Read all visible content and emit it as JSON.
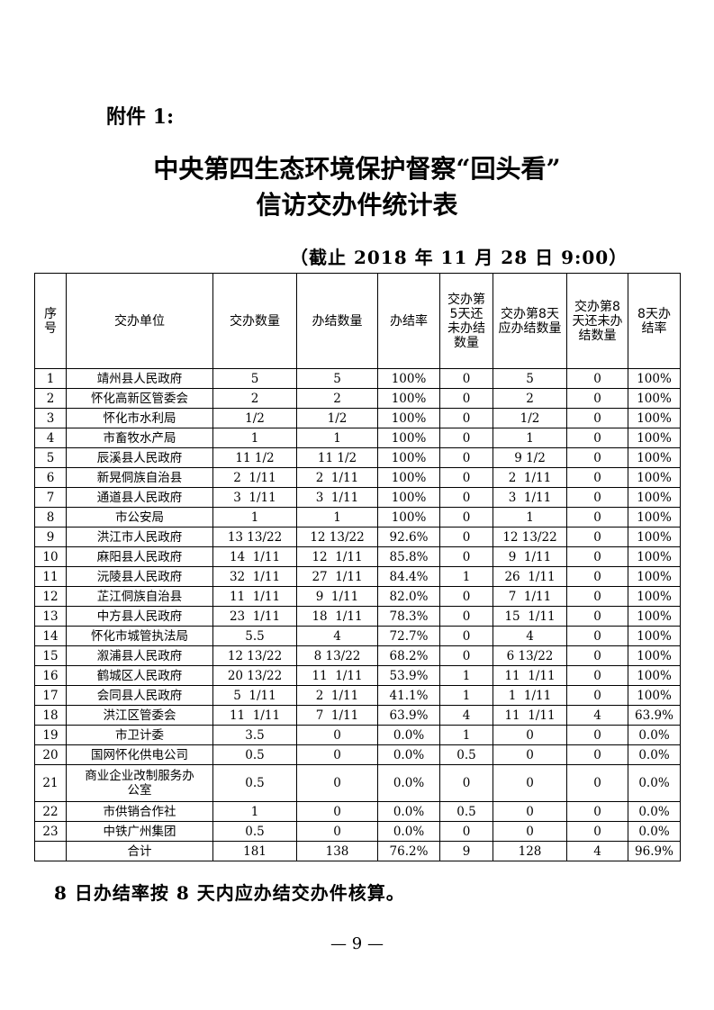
{
  "attachment_label": "附件 1:",
  "title_line1": "中央第四生态环境保护督察“回头看”",
  "title_line2": "信访交办件统计表",
  "as_of": "（截止 2018 年 11 月 28 日 9:00）",
  "table": {
    "headers": [
      "序号",
      "交办单位",
      "交办数量",
      "办结数量",
      "办结率",
      "交办第5天还未办结数量",
      "交办第8天应办结数量",
      "交办第8天还未办结数量",
      "8天办结率"
    ],
    "rows": [
      [
        "1",
        "靖州县人民政府",
        "5",
        "5",
        "100%",
        "0",
        "5",
        "0",
        "100%"
      ],
      [
        "2",
        "怀化高新区管委会",
        "2",
        "2",
        "100%",
        "0",
        "2",
        "0",
        "100%"
      ],
      [
        "3",
        "怀化市水利局",
        "1/2",
        "1/2",
        "100%",
        "0",
        "1/2",
        "0",
        "100%"
      ],
      [
        "4",
        "市畜牧水产局",
        "1",
        "1",
        "100%",
        "0",
        "1",
        "0",
        "100%"
      ],
      [
        "5",
        "辰溪县人民政府",
        "11 1/2",
        "11 1/2",
        "100%",
        "0",
        "9 1/2",
        "0",
        "100%"
      ],
      [
        "6",
        "新晃侗族自治县",
        "2  1/11",
        "2  1/11",
        "100%",
        "0",
        "2  1/11",
        "0",
        "100%"
      ],
      [
        "7",
        "通道县人民政府",
        "3  1/11",
        "3  1/11",
        "100%",
        "0",
        "3  1/11",
        "0",
        "100%"
      ],
      [
        "8",
        "市公安局",
        "1",
        "1",
        "100%",
        "0",
        "1",
        "0",
        "100%"
      ],
      [
        "9",
        "洪江市人民政府",
        "13 13/22",
        "12 13/22",
        "92.6%",
        "0",
        "12 13/22",
        "0",
        "100%"
      ],
      [
        "10",
        "麻阳县人民政府",
        "14  1/11",
        "12  1/11",
        "85.8%",
        "0",
        "9  1/11",
        "0",
        "100%"
      ],
      [
        "11",
        "沅陵县人民政府",
        "32  1/11",
        "27  1/11",
        "84.4%",
        "1",
        "26  1/11",
        "0",
        "100%"
      ],
      [
        "12",
        "芷江侗族自治县",
        "11  1/11",
        "9  1/11",
        "82.0%",
        "0",
        "7  1/11",
        "0",
        "100%"
      ],
      [
        "13",
        "中方县人民政府",
        "23  1/11",
        "18  1/11",
        "78.3%",
        "0",
        "15  1/11",
        "0",
        "100%"
      ],
      [
        "14",
        "怀化市城管执法局",
        "5.5",
        "4",
        "72.7%",
        "0",
        "4",
        "0",
        "100%"
      ],
      [
        "15",
        "溆浦县人民政府",
        "12 13/22",
        "8 13/22",
        "68.2%",
        "0",
        "6 13/22",
        "0",
        "100%"
      ],
      [
        "16",
        "鹤城区人民政府",
        "20 13/22",
        "11  1/11",
        "53.9%",
        "1",
        "11  1/11",
        "0",
        "100%"
      ],
      [
        "17",
        "会同县人民政府",
        "5  1/11",
        "2  1/11",
        "41.1%",
        "1",
        "1  1/11",
        "0",
        "100%"
      ],
      [
        "18",
        "洪江区管委会",
        "11  1/11",
        "7  1/11",
        "63.9%",
        "4",
        "11  1/11",
        "4",
        "63.9%"
      ],
      [
        "19",
        "市卫计委",
        "3.5",
        "0",
        "0.0%",
        "1",
        "0",
        "0",
        "0.0%"
      ],
      [
        "20",
        "国网怀化供电公司",
        "0.5",
        "0",
        "0.0%",
        "0.5",
        "0",
        "0",
        "0.0%"
      ],
      [
        "21",
        "商业企业改制服务办公室",
        "0.5",
        "0",
        "0.0%",
        "0",
        "0",
        "0",
        "0.0%"
      ],
      [
        "22",
        "市供销合作社",
        "1",
        "0",
        "0.0%",
        "0.5",
        "0",
        "0",
        "0.0%"
      ],
      [
        "23",
        "中铁广州集团",
        "0.5",
        "0",
        "0.0%",
        "0",
        "0",
        "0",
        "0.0%"
      ],
      [
        "",
        "合计",
        "181",
        "138",
        "76.2%",
        "9",
        "128",
        "4",
        "96.9%"
      ]
    ]
  },
  "footnote": "8 日办结率按 8 天内应办结交办件核算。",
  "page_number": "— 9 —"
}
